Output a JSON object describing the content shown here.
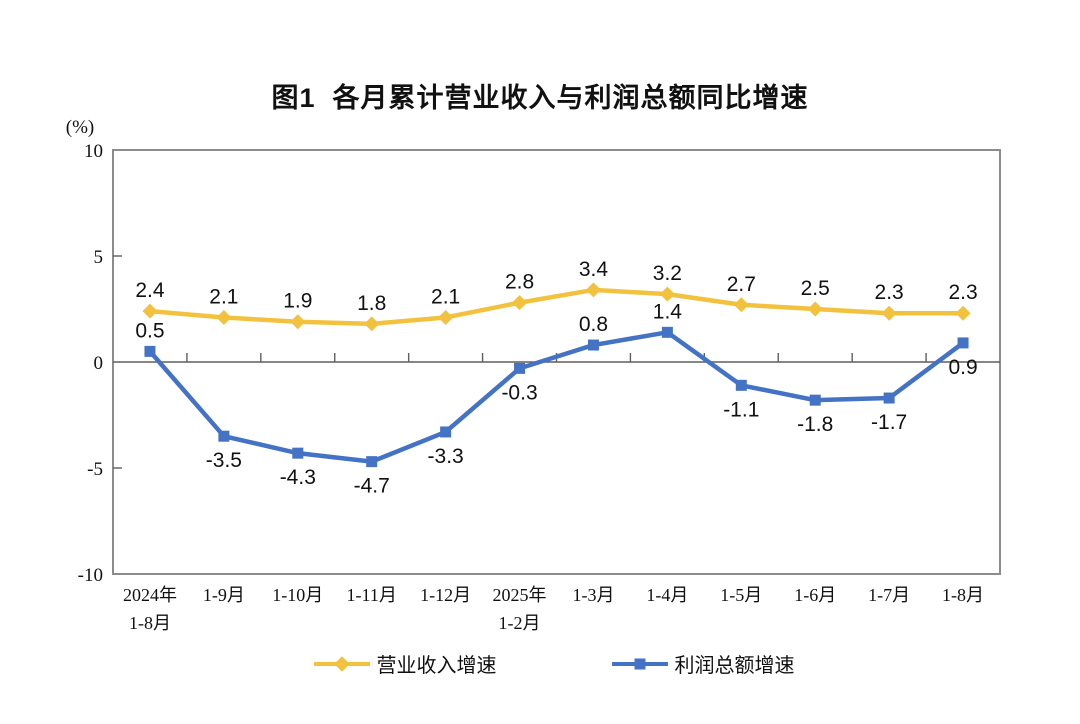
{
  "chart_data": {
    "type": "line",
    "title": "图1  各月累计营业收入与利润总额同比增速",
    "y_unit_label": "(%)",
    "categories": [
      [
        "2024年",
        "1-8月"
      ],
      [
        "1-9月"
      ],
      [
        "1-10月"
      ],
      [
        "1-11月"
      ],
      [
        "1-12月"
      ],
      [
        "2025年",
        "1-2月"
      ],
      [
        "1-3月"
      ],
      [
        "1-4月"
      ],
      [
        "1-5月"
      ],
      [
        "1-6月"
      ],
      [
        "1-7月"
      ],
      [
        "1-8月"
      ]
    ],
    "series": [
      {
        "name": "营业收入增速",
        "color": "#F2C23E",
        "marker": "diamond",
        "values": [
          2.4,
          2.1,
          1.9,
          1.8,
          2.1,
          2.8,
          3.4,
          3.2,
          2.7,
          2.5,
          2.3,
          2.3
        ],
        "label_side": [
          "above",
          "above",
          "above",
          "above",
          "above",
          "above",
          "above",
          "above",
          "above",
          "above",
          "above",
          "above"
        ]
      },
      {
        "name": "利润总额增速",
        "color": "#4472C4",
        "marker": "square",
        "values": [
          0.5,
          -3.5,
          -4.3,
          -4.7,
          -3.3,
          -0.3,
          0.8,
          1.4,
          -1.1,
          -1.8,
          -1.7,
          0.9
        ],
        "label_side": [
          "above",
          "below",
          "below",
          "below",
          "below",
          "below",
          "above",
          "above",
          "below",
          "below",
          "below",
          "below"
        ]
      }
    ],
    "ylim": [
      -10,
      10
    ],
    "yticks": [
      10,
      5,
      0,
      -5,
      -10
    ],
    "grid": false,
    "legend_position": "bottom",
    "axis_color": "#8C8C8C",
    "zero_line_color": "#5F5F5F",
    "text_color": "#111111"
  }
}
